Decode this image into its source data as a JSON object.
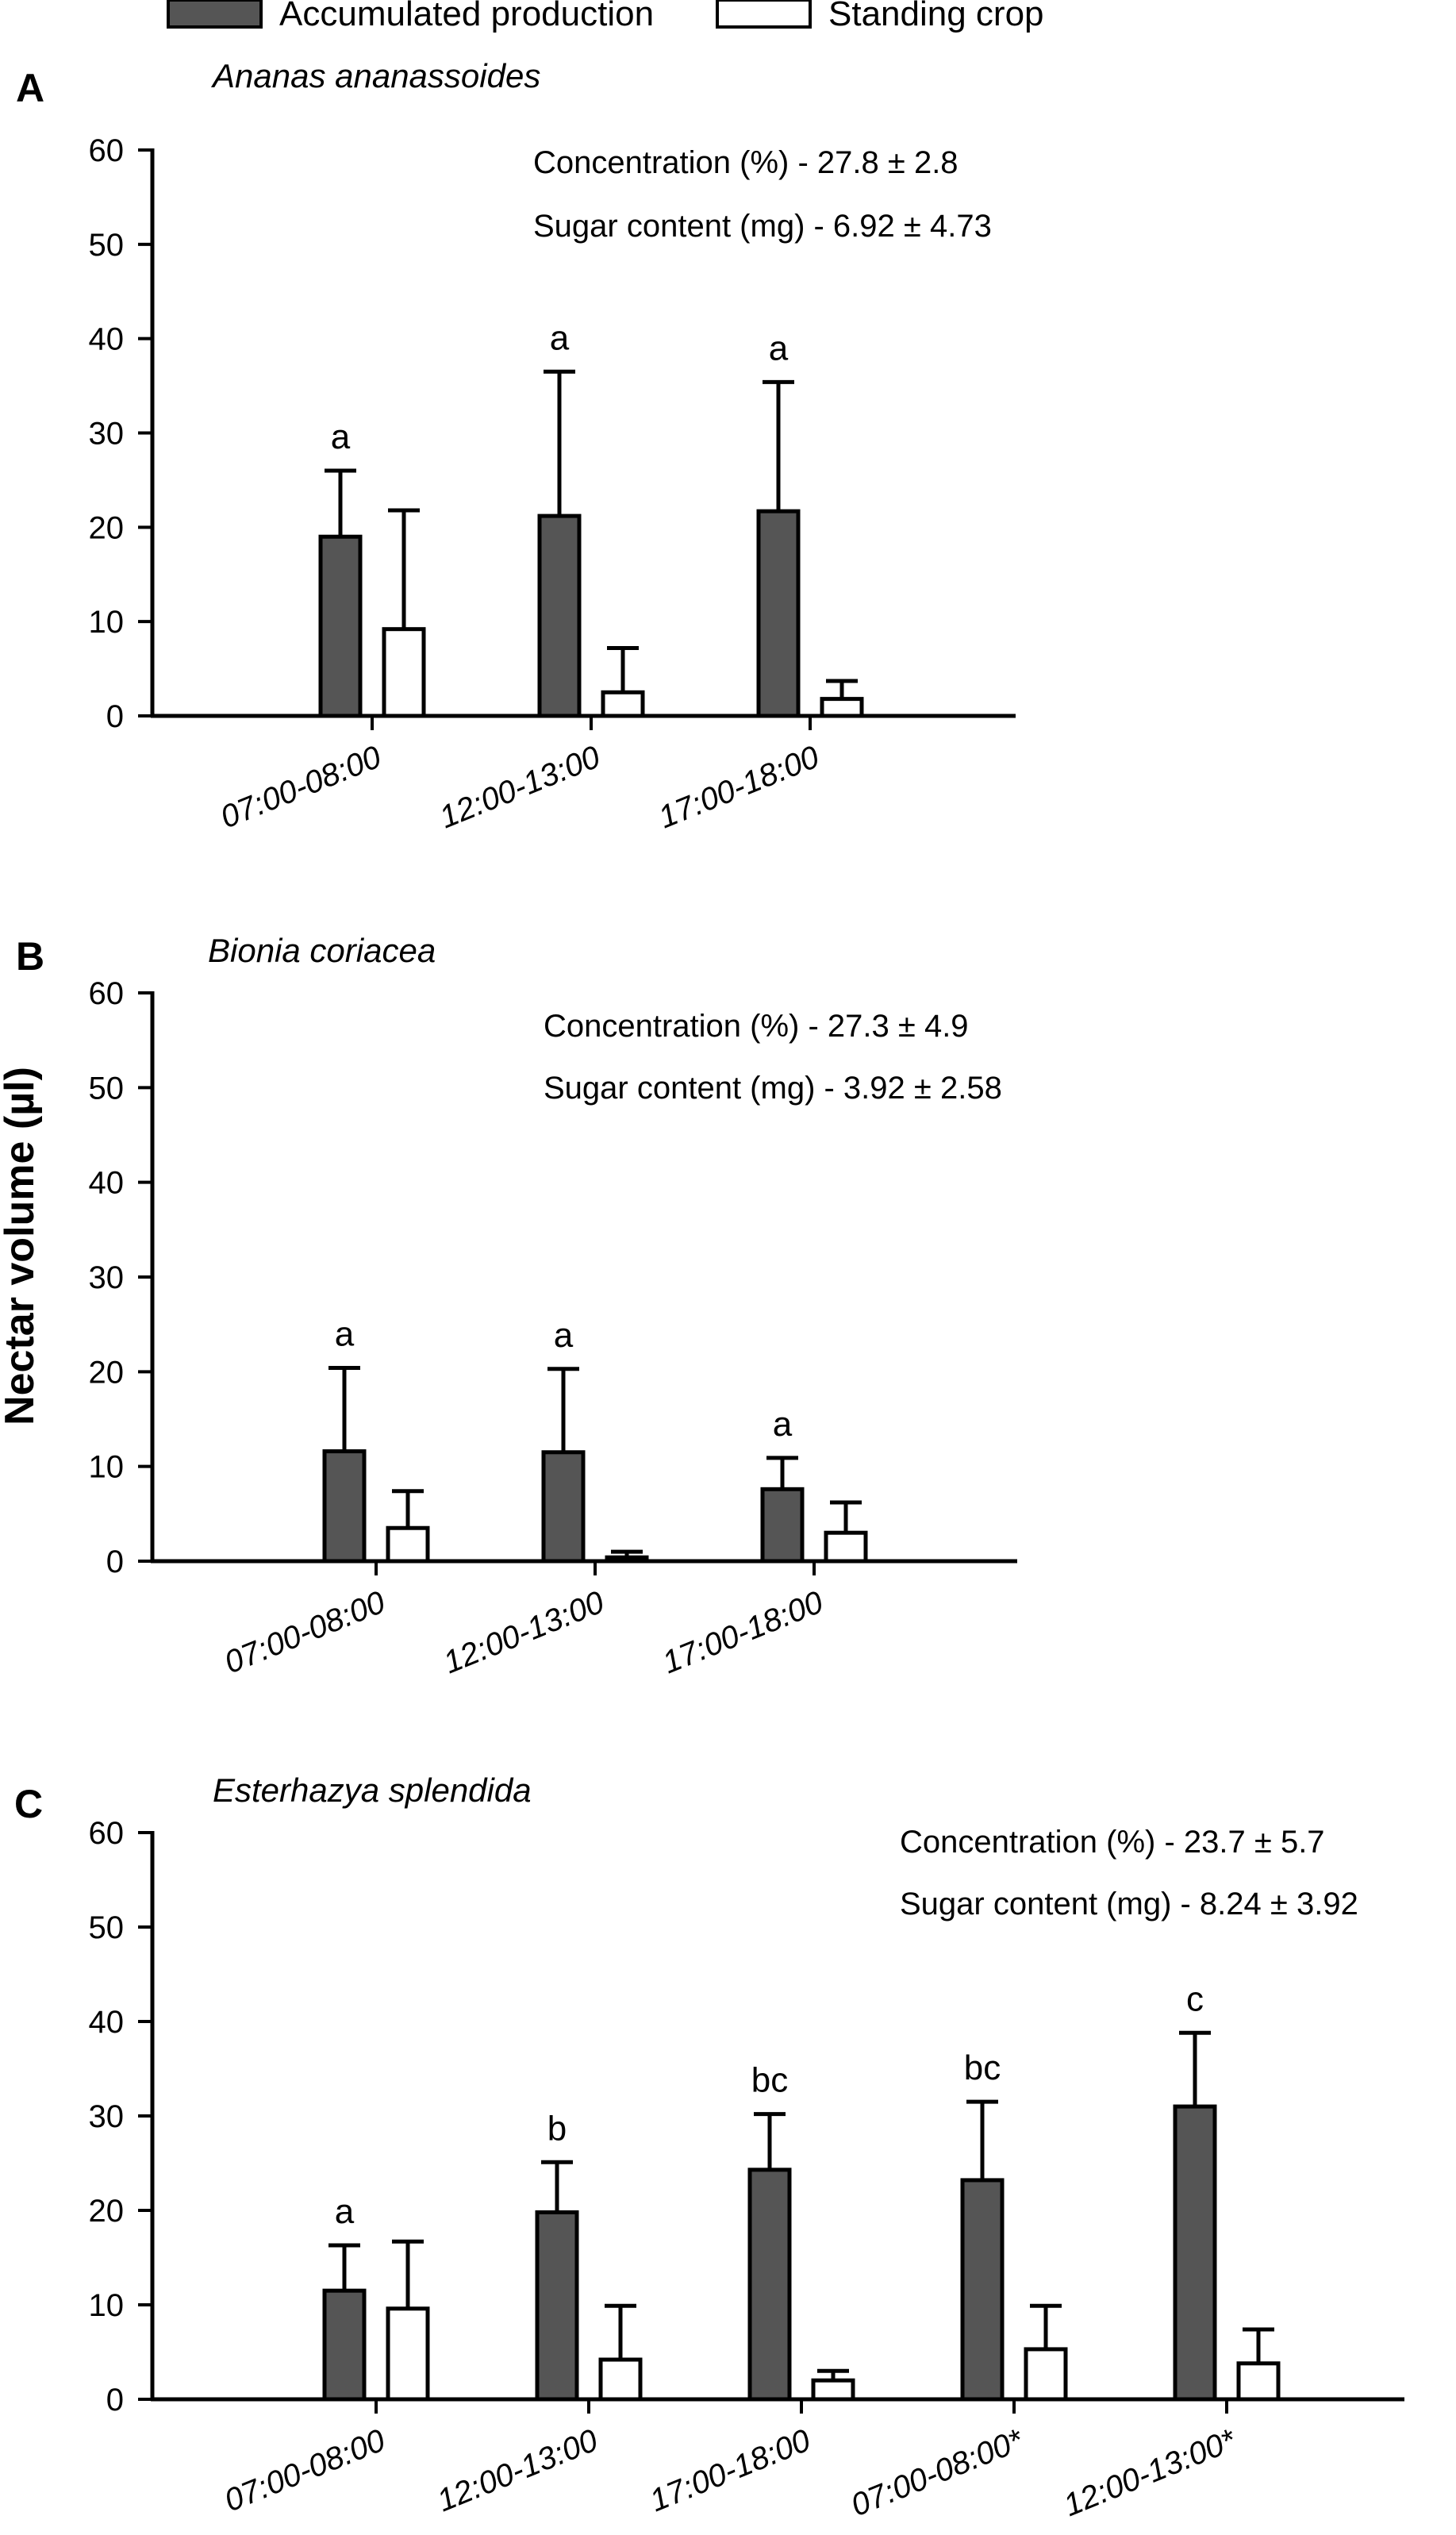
{
  "legend": {
    "items": [
      {
        "label": "Accumulated production",
        "fill": "#555555"
      },
      {
        "label": "Standing crop",
        "fill": "#ffffff"
      }
    ]
  },
  "y_axis_label": "Nectar volume (µl)",
  "colors": {
    "accumulated": "#555555",
    "standing": "#ffffff",
    "axis": "#000000"
  },
  "chart_data": [
    {
      "type": "bar",
      "panel": "A",
      "species": "Ananas ananassoides",
      "categories": [
        "07:00-08:00",
        "12:00-13:00",
        "17:00-18:00"
      ],
      "ylim": [
        0,
        60
      ],
      "yticks": [
        "0",
        "10",
        "20",
        "30",
        "40",
        "50",
        "60"
      ],
      "ylabel": "Nectar volume (µl)",
      "stats": [
        "Concentration (%) - 27.8 ± 2.8",
        "Sugar content (mg) - 6.92 ± 4.73"
      ],
      "series": [
        {
          "name": "Accumulated production",
          "values": [
            19.0,
            21.2,
            21.7
          ],
          "errors": [
            7.0,
            15.3,
            13.7
          ],
          "letters": [
            "a",
            "a",
            "a"
          ]
        },
        {
          "name": "Standing crop",
          "values": [
            9.2,
            2.5,
            1.8
          ],
          "errors": [
            12.6,
            4.7,
            1.9
          ]
        }
      ]
    },
    {
      "type": "bar",
      "panel": "B",
      "species": "Bionia coriacea",
      "categories": [
        "07:00-08:00",
        "12:00-13:00",
        "17:00-18:00"
      ],
      "ylim": [
        0,
        60
      ],
      "yticks": [
        "0",
        "10",
        "20",
        "30",
        "40",
        "50",
        "60"
      ],
      "ylabel": "Nectar volume (µl)",
      "stats": [
        "Concentration (%) - 27.3 ± 4.9",
        "Sugar content (mg) - 3.92 ± 2.58"
      ],
      "series": [
        {
          "name": "Accumulated production",
          "values": [
            11.6,
            11.5,
            7.6
          ],
          "errors": [
            8.8,
            8.8,
            3.3
          ],
          "letters": [
            "a",
            "a",
            "a"
          ]
        },
        {
          "name": "Standing crop",
          "values": [
            3.5,
            0.4,
            3.0
          ],
          "errors": [
            3.9,
            0.6,
            3.2
          ]
        }
      ]
    },
    {
      "type": "bar",
      "panel": "C",
      "species": "Esterhazya splendida",
      "categories": [
        "07:00-08:00",
        "12:00-13:00",
        "17:00-18:00",
        "07:00-08:00*",
        "12:00-13:00*"
      ],
      "ylim": [
        0,
        60
      ],
      "yticks": [
        "0",
        "10",
        "20",
        "30",
        "40",
        "50",
        "60"
      ],
      "ylabel": "Nectar volume (µl)",
      "stats": [
        "Concentration (%) - 23.7 ± 5.7",
        "Sugar content (mg) - 8.24 ± 3.92"
      ],
      "series": [
        {
          "name": "Accumulated production",
          "values": [
            11.5,
            19.8,
            24.3,
            23.2,
            31.0
          ],
          "errors": [
            4.8,
            5.3,
            5.9,
            8.3,
            7.8
          ],
          "letters": [
            "a",
            "b",
            "bc",
            "bc",
            "c"
          ]
        },
        {
          "name": "Standing crop",
          "values": [
            9.6,
            4.2,
            2.0,
            5.3,
            3.8
          ],
          "errors": [
            7.1,
            5.7,
            1.0,
            4.6,
            3.6
          ]
        }
      ]
    }
  ]
}
